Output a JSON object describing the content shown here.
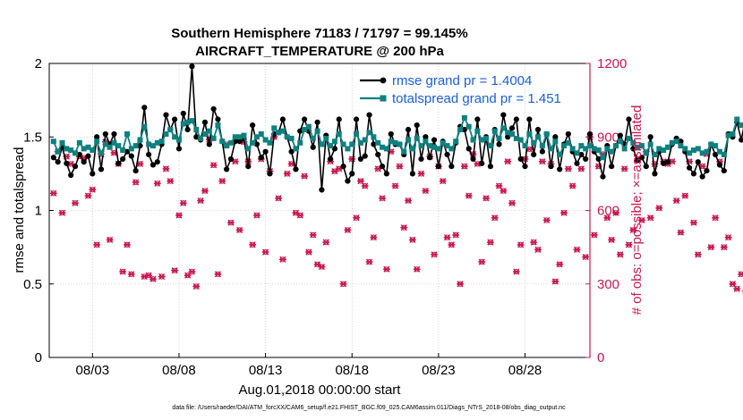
{
  "chart_data": {
    "type": "line",
    "title_lines": [
      "Southern Hemisphere 71183 / 71797 = 99.145%",
      "AIRCRAFT_TEMPERATURE @ 200 hPa"
    ],
    "xlabel": "Aug.01,2018 00:00:00 start",
    "ylabel_left": "rmse and totalspread",
    "ylabel_right": "# of obs: o=possible; ×=assimilated",
    "footer": "data file: /Users/raeder/DAI/ATM_forcXX/CAM6_setup/f.e21.FHIST_BGC.f09_025.CAM6assim.011/Diags_NTrS_2018-08/obs_diag_output.nc",
    "xlim_days": [
      0.5,
      31.75
    ],
    "ylim_left": [
      0,
      2
    ],
    "ylim_right": [
      0,
      1200
    ],
    "left_ticks": [
      "0",
      "0.5",
      "1",
      "1.5",
      "2"
    ],
    "left_tick_values": [
      0,
      0.5,
      1,
      1.5,
      2
    ],
    "right_ticks": [
      "0",
      "300",
      "600",
      "900",
      "1200"
    ],
    "right_tick_values": [
      0,
      300,
      600,
      900,
      1200
    ],
    "x_tick_labels": [
      "08/03",
      "08/08",
      "08/13",
      "08/18",
      "08/23",
      "08/28"
    ],
    "x_tick_days": [
      3,
      8,
      13,
      18,
      23,
      28
    ],
    "colors": {
      "rmse": "#000000",
      "spread": "#0f8080",
      "obs": "#c8174f",
      "grid": "#b8b8b8",
      "legend_text": "#1a5fd6"
    },
    "legend": [
      {
        "label": "rmse grand pr = 1.4004",
        "series": "rmse"
      },
      {
        "label": "totalspread grand pr = 1.451",
        "series": "spread"
      }
    ],
    "time_start_day": 0.75,
    "time_step_day": 0.25,
    "series": [
      {
        "name": "rmse",
        "values": [
          1.36,
          1.33,
          1.43,
          1.32,
          1.24,
          1.3,
          1.38,
          1.33,
          1.37,
          1.25,
          1.5,
          1.28,
          1.52,
          1.45,
          1.52,
          1.32,
          1.35,
          1.4,
          1.37,
          1.27,
          1.44,
          1.7,
          1.38,
          1.31,
          1.33,
          1.45,
          1.65,
          1.55,
          1.62,
          1.42,
          1.66,
          1.55,
          1.98,
          1.5,
          1.48,
          1.6,
          1.45,
          1.69,
          1.62,
          1.47,
          1.28,
          1.35,
          1.47,
          1.47,
          1.49,
          1.3,
          1.58,
          1.45,
          1.36,
          1.4,
          1.25,
          1.52,
          1.53,
          1.62,
          1.5,
          1.4,
          1.28,
          1.54,
          1.62,
          1.54,
          1.43,
          1.6,
          1.14,
          1.51,
          1.35,
          1.42,
          1.62,
          1.3,
          1.2,
          1.25,
          1.62,
          1.35,
          1.37,
          1.65,
          1.45,
          1.38,
          1.3,
          1.25,
          1.52,
          1.45,
          1.45,
          1.38,
          1.55,
          1.25,
          1.58,
          1.35,
          1.5,
          1.36,
          1.48,
          1.3,
          1.47,
          1.38,
          1.3,
          1.46,
          1.57,
          1.55,
          1.42,
          1.35,
          1.62,
          1.32,
          1.5,
          1.3,
          1.55,
          1.45,
          1.65,
          1.5,
          1.56,
          1.62,
          1.35,
          1.3,
          1.62,
          1.38,
          1.55,
          1.4,
          1.52,
          1.3,
          1.5,
          1.28,
          1.45,
          1.52,
          1.4,
          1.32,
          1.38,
          1.35,
          1.52,
          1.4,
          1.35,
          1.23,
          1.44,
          1.3,
          1.44,
          1.51,
          1.45,
          1.62,
          1.42,
          1.34,
          1.36,
          1.3,
          1.5,
          1.25,
          1.4,
          1.32,
          1.33,
          1.45,
          1.49,
          1.47,
          1.4,
          1.29,
          1.25,
          1.33,
          1.23,
          1.27,
          1.45,
          1.38,
          1.31,
          1.27,
          1.52,
          1.5,
          1.6,
          1.48,
          1.63,
          1.7
        ]
      },
      {
        "name": "spread",
        "values": [
          1.47,
          1.4,
          1.46,
          1.42,
          1.41,
          1.39,
          1.46,
          1.42,
          1.43,
          1.41,
          1.47,
          1.39,
          1.45,
          1.43,
          1.46,
          1.44,
          1.41,
          1.52,
          1.42,
          1.44,
          1.48,
          1.57,
          1.45,
          1.44,
          1.46,
          1.47,
          1.52,
          1.55,
          1.5,
          1.48,
          1.59,
          1.6,
          1.61,
          1.55,
          1.49,
          1.52,
          1.54,
          1.49,
          1.58,
          1.47,
          1.44,
          1.46,
          1.5,
          1.5,
          1.51,
          1.42,
          1.46,
          1.5,
          1.52,
          1.48,
          1.46,
          1.56,
          1.53,
          1.54,
          1.5,
          1.49,
          1.42,
          1.46,
          1.55,
          1.57,
          1.49,
          1.54,
          1.45,
          1.49,
          1.44,
          1.47,
          1.52,
          1.45,
          1.42,
          1.45,
          1.52,
          1.46,
          1.48,
          1.53,
          1.5,
          1.46,
          1.43,
          1.42,
          1.47,
          1.46,
          1.45,
          1.4,
          1.48,
          1.42,
          1.49,
          1.44,
          1.47,
          1.44,
          1.43,
          1.42,
          1.46,
          1.44,
          1.42,
          1.47,
          1.55,
          1.63,
          1.57,
          1.48,
          1.54,
          1.48,
          1.49,
          1.44,
          1.54,
          1.49,
          1.56,
          1.53,
          1.52,
          1.49,
          1.48,
          1.44,
          1.52,
          1.46,
          1.5,
          1.44,
          1.52,
          1.42,
          1.47,
          1.38,
          1.44,
          1.46,
          1.42,
          1.39,
          1.44,
          1.42,
          1.44,
          1.42,
          1.41,
          1.36,
          1.42,
          1.4,
          1.44,
          1.47,
          1.42,
          1.49,
          1.46,
          1.43,
          1.44,
          1.39,
          1.45,
          1.38,
          1.42,
          1.41,
          1.43,
          1.46,
          1.47,
          1.44,
          1.42,
          1.39,
          1.41,
          1.42,
          1.39,
          1.4,
          1.45,
          1.44,
          1.4,
          1.38,
          1.51,
          1.52,
          1.62,
          1.58,
          1.6,
          1.6
        ]
      },
      {
        "name": "obs_assimilated",
        "values": [
          670,
          840,
          590,
          820,
          790,
          630,
          820,
          815,
          660,
          685,
          460,
          830,
          880,
          480,
          835,
          790,
          350,
          460,
          340,
          715,
          790,
          330,
          335,
          320,
          710,
          330,
          770,
          720,
          355,
          580,
          630,
          335,
          350,
          290,
          640,
          680,
          890,
          785,
          340,
          720,
          870,
          550,
          800,
          520,
          880,
          800,
          460,
          580,
          810,
          430,
          760,
          900,
          650,
          400,
          750,
          790,
          590,
          580,
          740,
          430,
          500,
          380,
          370,
          470,
          800,
          760,
          770,
          300,
          520,
          810,
          570,
          720,
          700,
          390,
          490,
          770,
          650,
          360,
          840,
          700,
          780,
          530,
          640,
          480,
          360,
          750,
          680,
          820,
          420,
          780,
          720,
          490,
          460,
          500,
          300,
          780,
          660,
          830,
          790,
          390,
          650,
          470,
          570,
          700,
          680,
          800,
          630,
          350,
          460,
          810,
          850,
          470,
          440,
          800,
          560,
          790,
          310,
          380,
          590,
          770,
          700,
          440,
          770,
          410,
          900,
          500,
          780,
          830,
          570,
          480,
          590,
          420,
          770,
          460,
          520,
          810,
          560,
          840,
          570,
          790,
          610,
          800,
          790,
          800,
          640,
          510,
          660,
          800,
          550,
          420,
          780,
          830,
          450,
          570,
          800,
          450,
          490,
          300,
          280,
          340,
          270,
          250,
          360,
          280,
          240,
          0
        ]
      },
      {
        "name": "obs_possible",
        "values": [
          670,
          840,
          590,
          820,
          790,
          630,
          820,
          815,
          660,
          685,
          460,
          830,
          880,
          480,
          835,
          790,
          350,
          460,
          340,
          715,
          790,
          330,
          335,
          320,
          710,
          330,
          770,
          720,
          355,
          580,
          630,
          335,
          350,
          290,
          640,
          680,
          890,
          785,
          340,
          720,
          870,
          550,
          800,
          520,
          880,
          800,
          460,
          580,
          810,
          430,
          760,
          900,
          650,
          400,
          750,
          790,
          590,
          580,
          740,
          430,
          500,
          380,
          370,
          470,
          800,
          760,
          770,
          300,
          520,
          810,
          570,
          720,
          700,
          390,
          490,
          770,
          650,
          360,
          840,
          700,
          780,
          530,
          640,
          480,
          360,
          750,
          680,
          820,
          420,
          780,
          720,
          490,
          460,
          500,
          300,
          780,
          660,
          830,
          790,
          390,
          650,
          470,
          570,
          700,
          680,
          800,
          630,
          350,
          460,
          810,
          850,
          470,
          440,
          800,
          560,
          790,
          310,
          380,
          590,
          770,
          700,
          440,
          770,
          410,
          900,
          500,
          780,
          830,
          570,
          480,
          590,
          420,
          770,
          460,
          520,
          810,
          560,
          840,
          570,
          790,
          610,
          800,
          790,
          800,
          640,
          510,
          660,
          800,
          550,
          420,
          780,
          830,
          450,
          570,
          800,
          450,
          490,
          300,
          280,
          340,
          270,
          250,
          360,
          280,
          240,
          0
        ]
      }
    ]
  }
}
